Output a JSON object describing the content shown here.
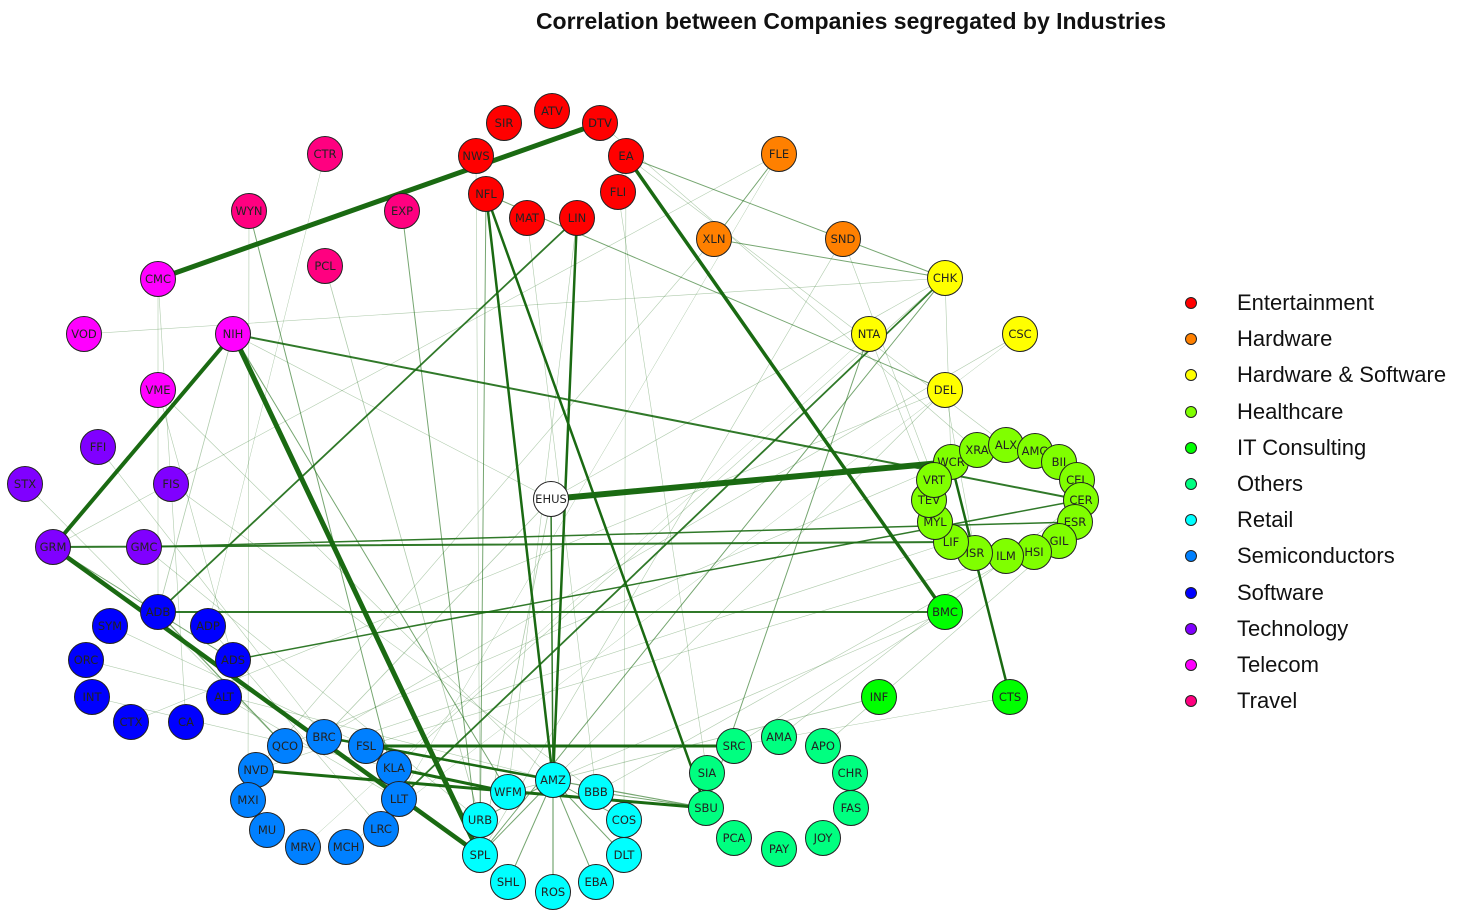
{
  "title": "Correlation between Companies segregated by Industries",
  "industries": [
    {
      "name": "Entertainment",
      "color": "#ff0000"
    },
    {
      "name": "Hardware",
      "color": "#ff8000"
    },
    {
      "name": "Hardware & Software",
      "color": "#ffff00"
    },
    {
      "name": "Healthcare",
      "color": "#80ff00"
    },
    {
      "name": "IT Consulting",
      "color": "#00ff00"
    },
    {
      "name": "Others",
      "color": "#00ff80"
    },
    {
      "name": "Retail",
      "color": "#00ffff"
    },
    {
      "name": "Semiconductors",
      "color": "#0080ff"
    },
    {
      "name": "Software",
      "color": "#0000ff"
    },
    {
      "name": "Technology",
      "color": "#8000ff"
    },
    {
      "name": "Telecom",
      "color": "#ff00ff"
    },
    {
      "name": "Travel",
      "color": "#ff0080"
    }
  ],
  "center_node": {
    "id": "EHUS",
    "color": "#ffffff"
  },
  "nodes": [
    {
      "id": "SIR",
      "industry": "Entertainment"
    },
    {
      "id": "ATV",
      "industry": "Entertainment"
    },
    {
      "id": "DTV",
      "industry": "Entertainment"
    },
    {
      "id": "NWS",
      "industry": "Entertainment"
    },
    {
      "id": "EA",
      "industry": "Entertainment"
    },
    {
      "id": "NFL",
      "industry": "Entertainment"
    },
    {
      "id": "FLI",
      "industry": "Entertainment"
    },
    {
      "id": "MAT",
      "industry": "Entertainment"
    },
    {
      "id": "LIN",
      "industry": "Entertainment"
    },
    {
      "id": "FLE",
      "industry": "Hardware"
    },
    {
      "id": "XLN",
      "industry": "Hardware"
    },
    {
      "id": "SND",
      "industry": "Hardware"
    },
    {
      "id": "CHK",
      "industry": "Hardware & Software"
    },
    {
      "id": "NTA",
      "industry": "Hardware & Software"
    },
    {
      "id": "CSC",
      "industry": "Hardware & Software"
    },
    {
      "id": "DEL",
      "industry": "Hardware & Software"
    },
    {
      "id": "WCR",
      "industry": "Healthcare"
    },
    {
      "id": "XRA",
      "industry": "Healthcare"
    },
    {
      "id": "ALX",
      "industry": "Healthcare"
    },
    {
      "id": "AMG",
      "industry": "Healthcare"
    },
    {
      "id": "BII",
      "industry": "Healthcare"
    },
    {
      "id": "CEL",
      "industry": "Healthcare"
    },
    {
      "id": "CER",
      "industry": "Healthcare"
    },
    {
      "id": "ESR",
      "industry": "Healthcare"
    },
    {
      "id": "GIL",
      "industry": "Healthcare"
    },
    {
      "id": "HSI",
      "industry": "Healthcare"
    },
    {
      "id": "ILM",
      "industry": "Healthcare"
    },
    {
      "id": "ISR",
      "industry": "Healthcare"
    },
    {
      "id": "LIF",
      "industry": "Healthcare"
    },
    {
      "id": "MYL",
      "industry": "Healthcare"
    },
    {
      "id": "TEV",
      "industry": "Healthcare"
    },
    {
      "id": "VRT",
      "industry": "Healthcare"
    },
    {
      "id": "BMC",
      "industry": "IT Consulting"
    },
    {
      "id": "CTS",
      "industry": "IT Consulting"
    },
    {
      "id": "INF",
      "industry": "IT Consulting"
    },
    {
      "id": "AMA",
      "industry": "Others"
    },
    {
      "id": "APO",
      "industry": "Others"
    },
    {
      "id": "SRC",
      "industry": "Others"
    },
    {
      "id": "CHR",
      "industry": "Others"
    },
    {
      "id": "SIA",
      "industry": "Others"
    },
    {
      "id": "FAS",
      "industry": "Others"
    },
    {
      "id": "SBU",
      "industry": "Others"
    },
    {
      "id": "JOY",
      "industry": "Others"
    },
    {
      "id": "PCA",
      "industry": "Others"
    },
    {
      "id": "PAY",
      "industry": "Others"
    },
    {
      "id": "AMZ",
      "industry": "Retail"
    },
    {
      "id": "WFM",
      "industry": "Retail"
    },
    {
      "id": "BBB",
      "industry": "Retail"
    },
    {
      "id": "URB",
      "industry": "Retail"
    },
    {
      "id": "COS",
      "industry": "Retail"
    },
    {
      "id": "SPL",
      "industry": "Retail"
    },
    {
      "id": "DLT",
      "industry": "Retail"
    },
    {
      "id": "SHL",
      "industry": "Retail"
    },
    {
      "id": "ROS",
      "industry": "Retail"
    },
    {
      "id": "EBA",
      "industry": "Retail"
    },
    {
      "id": "BRC",
      "industry": "Semiconductors"
    },
    {
      "id": "QCO",
      "industry": "Semiconductors"
    },
    {
      "id": "FSL",
      "industry": "Semiconductors"
    },
    {
      "id": "NVD",
      "industry": "Semiconductors"
    },
    {
      "id": "KLA",
      "industry": "Semiconductors"
    },
    {
      "id": "MXI",
      "industry": "Semiconductors"
    },
    {
      "id": "LLT",
      "industry": "Semiconductors"
    },
    {
      "id": "MU",
      "industry": "Semiconductors"
    },
    {
      "id": "LRC",
      "industry": "Semiconductors"
    },
    {
      "id": "MRV",
      "industry": "Semiconductors"
    },
    {
      "id": "MCH",
      "industry": "Semiconductors"
    },
    {
      "id": "SYM",
      "industry": "Software"
    },
    {
      "id": "ADB",
      "industry": "Software"
    },
    {
      "id": "ADP",
      "industry": "Software"
    },
    {
      "id": "ORC",
      "industry": "Software"
    },
    {
      "id": "ADS",
      "industry": "Software"
    },
    {
      "id": "INT",
      "industry": "Software"
    },
    {
      "id": "ALT",
      "industry": "Software"
    },
    {
      "id": "CTX",
      "industry": "Software"
    },
    {
      "id": "CA",
      "industry": "Software"
    },
    {
      "id": "FFI",
      "industry": "Technology"
    },
    {
      "id": "STX",
      "industry": "Technology"
    },
    {
      "id": "FIS",
      "industry": "Technology"
    },
    {
      "id": "GRM",
      "industry": "Technology"
    },
    {
      "id": "GMC",
      "industry": "Technology"
    },
    {
      "id": "CMC",
      "industry": "Telecom"
    },
    {
      "id": "VOD",
      "industry": "Telecom"
    },
    {
      "id": "NIH",
      "industry": "Telecom"
    },
    {
      "id": "VME",
      "industry": "Telecom"
    },
    {
      "id": "CTR",
      "industry": "Travel"
    },
    {
      "id": "WYN",
      "industry": "Travel"
    },
    {
      "id": "EXP",
      "industry": "Travel"
    },
    {
      "id": "PCL",
      "industry": "Travel"
    }
  ],
  "edges": [
    {
      "from": "EHUS",
      "to": "WCR",
      "weight": 6
    },
    {
      "from": "CMC",
      "to": "DTV",
      "weight": 5
    },
    {
      "from": "NIH",
      "to": "SPL",
      "weight": 5
    },
    {
      "from": "GRM",
      "to": "SPL",
      "weight": 4.5
    },
    {
      "from": "GRM",
      "to": "NIH",
      "weight": 4
    },
    {
      "from": "EA",
      "to": "BMC",
      "weight": 3.5
    },
    {
      "from": "FSL",
      "to": "SRC",
      "weight": 3
    },
    {
      "from": "NVD",
      "to": "SBU",
      "weight": 3
    },
    {
      "from": "KLA",
      "to": "WFM",
      "weight": 3
    },
    {
      "from": "NFL",
      "to": "AMZ",
      "weight": 2.5
    },
    {
      "from": "NFL",
      "to": "SBU",
      "weight": 2.5
    },
    {
      "from": "LIN",
      "to": "AMZ",
      "weight": 2.5
    },
    {
      "from": "BRC",
      "to": "AMZ",
      "weight": 2.5
    },
    {
      "from": "GRM",
      "to": "LIF",
      "weight": 2
    },
    {
      "from": "ADB",
      "to": "BMC",
      "weight": 2
    },
    {
      "from": "NIH",
      "to": "CER",
      "weight": 2
    },
    {
      "from": "WCR",
      "to": "CTS",
      "weight": 2.5
    },
    {
      "from": "LIN",
      "to": "ADB",
      "weight": 1.8
    },
    {
      "from": "CHK",
      "to": "LLT",
      "weight": 1.8
    },
    {
      "from": "ADS",
      "to": "CER",
      "weight": 1.5
    },
    {
      "from": "GMC",
      "to": "ESR",
      "weight": 1.5
    },
    {
      "from": "FLE",
      "to": "XLN",
      "weight": 1
    },
    {
      "from": "XLN",
      "to": "CHK",
      "weight": 1
    },
    {
      "from": "NFL",
      "to": "DEL",
      "weight": 1
    },
    {
      "from": "EA",
      "to": "CHK",
      "weight": 1
    },
    {
      "from": "NTA",
      "to": "SBU",
      "weight": 1
    },
    {
      "from": "CHK",
      "to": "SPL",
      "weight": 1
    },
    {
      "from": "NFL",
      "to": "SPL",
      "weight": 1
    },
    {
      "from": "WYN",
      "to": "LLT",
      "weight": 1
    },
    {
      "from": "EXP",
      "to": "SPL",
      "weight": 1
    },
    {
      "from": "PCL",
      "to": "URB",
      "weight": 0.8
    },
    {
      "from": "NIH",
      "to": "WFM",
      "weight": 1
    },
    {
      "from": "VOD",
      "to": "CHK",
      "weight": 0.6
    },
    {
      "from": "FLE",
      "to": "GRM",
      "weight": 0.6
    },
    {
      "from": "SND",
      "to": "SPL",
      "weight": 0.6
    },
    {
      "from": "DEL",
      "to": "CTX",
      "weight": 0.6
    },
    {
      "from": "CSC",
      "to": "BRC",
      "weight": 0.6
    },
    {
      "from": "FIS",
      "to": "BBB",
      "weight": 0.6
    },
    {
      "from": "VME",
      "to": "AMZ",
      "weight": 0.6
    },
    {
      "from": "CMC",
      "to": "CA",
      "weight": 0.6
    },
    {
      "from": "INF",
      "to": "WFM",
      "weight": 0.8
    },
    {
      "from": "EHUS",
      "to": "AMZ",
      "weight": 1.5
    },
    {
      "from": "EHUS",
      "to": "SPL",
      "weight": 0.8
    },
    {
      "from": "EHUS",
      "to": "NIH",
      "weight": 0.6
    },
    {
      "from": "EHUS",
      "to": "BRC",
      "weight": 0.8
    },
    {
      "from": "EHUS",
      "to": "CHK",
      "weight": 0.6
    },
    {
      "from": "AMZ",
      "to": "ROS",
      "weight": 1.2
    },
    {
      "from": "AMZ",
      "to": "EBA",
      "weight": 1
    },
    {
      "from": "AMZ",
      "to": "SHL",
      "weight": 1
    },
    {
      "from": "AMZ",
      "to": "DLT",
      "weight": 1
    },
    {
      "from": "AMZ",
      "to": "COS",
      "weight": 1
    },
    {
      "from": "AMZ",
      "to": "URB",
      "weight": 1
    },
    {
      "from": "AMZ",
      "to": "SPL",
      "weight": 1
    },
    {
      "from": "SPL",
      "to": "LLT",
      "weight": 1.2
    },
    {
      "from": "SBU",
      "to": "FSL",
      "weight": 1.2
    },
    {
      "from": "SBU",
      "to": "BBB",
      "weight": 1
    },
    {
      "from": "ADB",
      "to": "QCO",
      "weight": 1.2
    },
    {
      "from": "GRM",
      "to": "ADS",
      "weight": 1
    },
    {
      "from": "NIH",
      "to": "ADB",
      "weight": 0.8
    },
    {
      "from": "STX",
      "to": "QCO",
      "weight": 0.6
    },
    {
      "from": "FFI",
      "to": "BRC",
      "weight": 0.6
    },
    {
      "from": "ADP",
      "to": "LRC",
      "weight": 0.6
    },
    {
      "from": "ALT",
      "to": "LLT",
      "weight": 0.6
    },
    {
      "from": "SYM",
      "to": "FSL",
      "weight": 0.6
    },
    {
      "from": "INT",
      "to": "KLA",
      "weight": 0.6
    },
    {
      "from": "ORC",
      "to": "AMZ",
      "weight": 0.6
    },
    {
      "from": "DEL",
      "to": "ISR",
      "weight": 0.6
    },
    {
      "from": "CHK",
      "to": "WCR",
      "weight": 0.6
    },
    {
      "from": "NTA",
      "to": "LIF",
      "weight": 0.6
    },
    {
      "from": "SND",
      "to": "VRT",
      "weight": 0.6
    },
    {
      "from": "EA",
      "to": "ALX",
      "weight": 0.6
    },
    {
      "from": "DTV",
      "to": "XRA",
      "weight": 0.6
    },
    {
      "from": "BMC",
      "to": "SRC",
      "weight": 0.6
    },
    {
      "from": "AMA",
      "to": "CER",
      "weight": 0.6
    },
    {
      "from": "APO",
      "to": "GIL",
      "weight": 0.6
    },
    {
      "from": "GMC",
      "to": "URB",
      "weight": 0.6
    },
    {
      "from": "CMC",
      "to": "ADB",
      "weight": 0.6
    },
    {
      "from": "VME",
      "to": "ADS",
      "weight": 0.6
    },
    {
      "from": "WYN",
      "to": "MXI",
      "weight": 0.6
    },
    {
      "from": "CTR",
      "to": "ADP",
      "weight": 0.5
    },
    {
      "from": "LIN",
      "to": "WFM",
      "weight": 0.6
    },
    {
      "from": "MAT",
      "to": "BBB",
      "weight": 0.6
    },
    {
      "from": "FLI",
      "to": "SIA",
      "weight": 0.6
    },
    {
      "from": "NWS",
      "to": "SPL",
      "weight": 0.6
    },
    {
      "from": "EA",
      "to": "COS",
      "weight": 0.6
    },
    {
      "from": "XLN",
      "to": "NVD",
      "weight": 0.6
    },
    {
      "from": "CSC",
      "to": "MCH",
      "weight": 0.5
    },
    {
      "from": "CHK",
      "to": "KLA",
      "weight": 0.6
    },
    {
      "from": "DEL",
      "to": "AMZ",
      "weight": 0.6
    },
    {
      "from": "NTA",
      "to": "MRV",
      "weight": 0.5
    },
    {
      "from": "FLE",
      "to": "LRC",
      "weight": 0.5
    },
    {
      "from": "BMC",
      "to": "AMZ",
      "weight": 0.6
    },
    {
      "from": "CTS",
      "to": "SRC",
      "weight": 0.5
    },
    {
      "from": "WCR",
      "to": "QCO",
      "weight": 0.6
    },
    {
      "from": "LIF",
      "to": "NVD",
      "weight": 0.6
    },
    {
      "from": "ESR",
      "to": "BBB",
      "weight": 0.6
    },
    {
      "from": "GIL",
      "to": "FSL",
      "weight": 0.6
    }
  ]
}
